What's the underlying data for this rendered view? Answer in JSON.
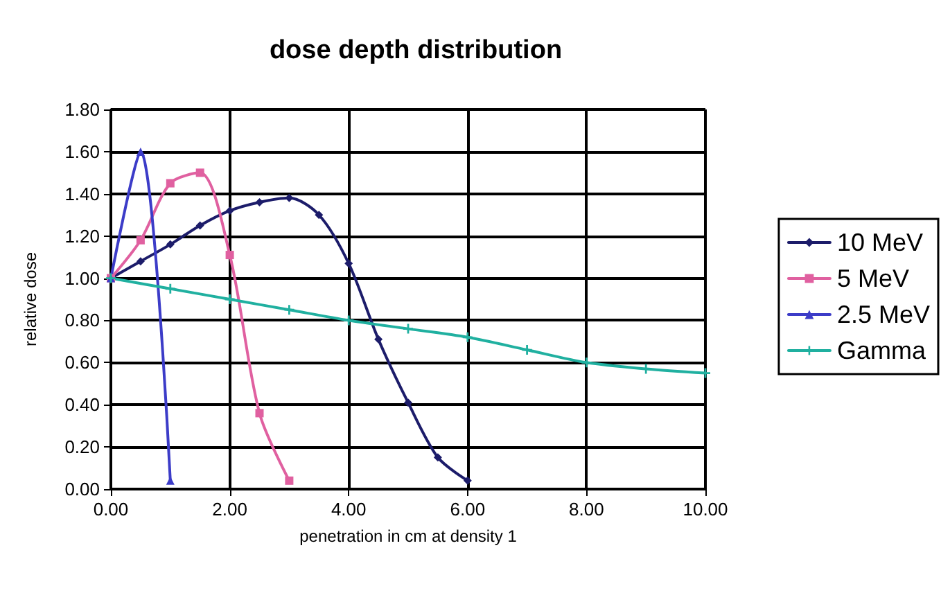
{
  "chart_data": {
    "type": "line",
    "title": "dose depth distribution",
    "xlabel": "penetration in cm at density 1",
    "ylabel": "relative dose",
    "xlim": [
      0,
      10
    ],
    "xticks": [
      {
        "value": 0,
        "label": "0.00"
      },
      {
        "value": 2,
        "label": "2.00"
      },
      {
        "value": 4,
        "label": "4.00"
      },
      {
        "value": 6,
        "label": "6.00"
      },
      {
        "value": 8,
        "label": "8.00"
      },
      {
        "value": 10,
        "label": "10.00"
      }
    ],
    "ylim": [
      0,
      1.8
    ],
    "yticks": [
      {
        "value": 0,
        "label": "0.00"
      },
      {
        "value": 0.2,
        "label": "0.20"
      },
      {
        "value": 0.4,
        "label": "0.40"
      },
      {
        "value": 0.6,
        "label": "0.60"
      },
      {
        "value": 0.8,
        "label": "0.80"
      },
      {
        "value": 1,
        "label": "1.00"
      },
      {
        "value": 1.2,
        "label": "1.20"
      },
      {
        "value": 1.4,
        "label": "1.40"
      },
      {
        "value": 1.6,
        "label": "1.60"
      },
      {
        "value": 1.8,
        "label": "1.80"
      }
    ],
    "grid": true,
    "legend": "right",
    "line_style": "solid",
    "series": [
      {
        "name": "10 MeV",
        "color": "#1c1c6a",
        "marker": "diamond",
        "x": [
          0,
          0.5,
          1,
          1.5,
          2,
          2.5,
          3,
          3.5,
          4,
          4.5,
          5,
          5.5,
          6
        ],
        "values": [
          1.0,
          1.08,
          1.16,
          1.25,
          1.32,
          1.36,
          1.38,
          1.3,
          1.07,
          0.71,
          0.41,
          0.15,
          0.04
        ]
      },
      {
        "name": "5 MeV",
        "color": "#e060a0",
        "marker": "square",
        "x": [
          0,
          0.5,
          1,
          1.5,
          2,
          2.5,
          3
        ],
        "values": [
          1.0,
          1.18,
          1.45,
          1.5,
          1.11,
          0.36,
          0.04
        ]
      },
      {
        "name": "2.5 MeV",
        "color": "#3c3cc8",
        "marker": "triangle",
        "x": [
          0,
          0.5,
          1
        ],
        "values": [
          1.0,
          1.6,
          0.04
        ]
      },
      {
        "name": "Gamma",
        "color": "#20b0a0",
        "marker": "cross",
        "x": [
          0,
          1,
          2,
          3,
          4,
          5,
          6,
          7,
          8,
          9,
          10
        ],
        "values": [
          1.0,
          0.95,
          0.9,
          0.85,
          0.8,
          0.76,
          0.72,
          0.66,
          0.6,
          0.57,
          0.55
        ]
      }
    ]
  }
}
